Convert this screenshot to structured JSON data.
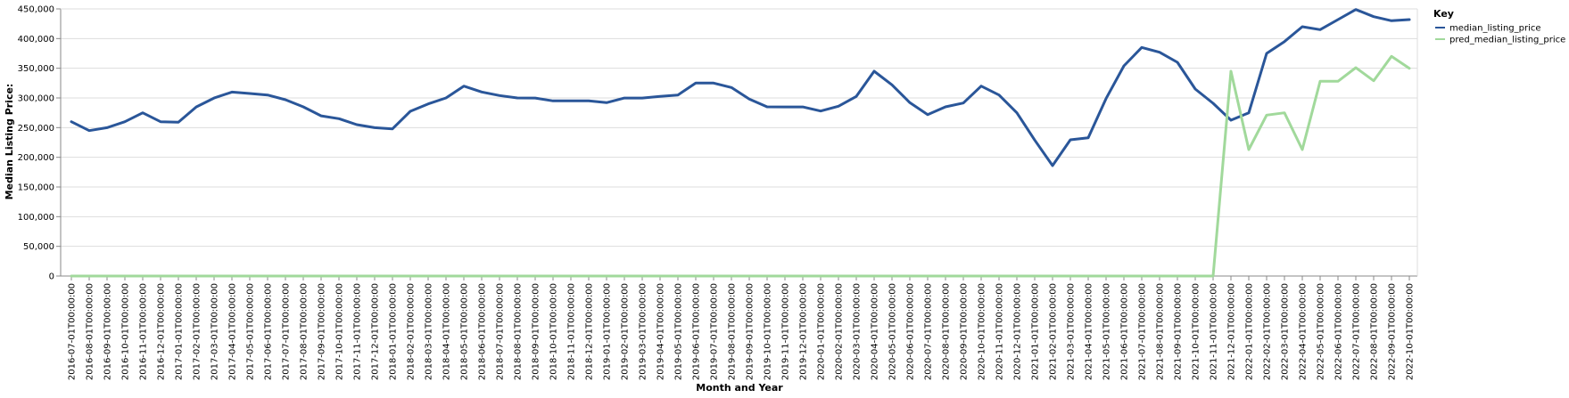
{
  "chart_data": {
    "type": "line",
    "xlabel": "Month and Year",
    "ylabel": "Median Listing Price:",
    "ylim": [
      0,
      450000
    ],
    "yticks": [
      0,
      50000,
      100000,
      150000,
      200000,
      250000,
      300000,
      350000,
      400000,
      450000
    ],
    "ytick_labels": [
      "0",
      "50,000",
      "100,000",
      "150,000",
      "200,000",
      "250,000",
      "300,000",
      "350,000",
      "400,000",
      "450,000"
    ],
    "grid": true,
    "legend": {
      "title": "Key",
      "placement": "top-right"
    },
    "categories": [
      "2016-07-01T00:00:00",
      "2016-08-01T00:00:00",
      "2016-09-01T00:00:00",
      "2016-10-01T00:00:00",
      "2016-11-01T00:00:00",
      "2016-12-01T00:00:00",
      "2017-01-01T00:00:00",
      "2017-02-01T00:00:00",
      "2017-03-01T00:00:00",
      "2017-04-01T00:00:00",
      "2017-05-01T00:00:00",
      "2017-06-01T00:00:00",
      "2017-07-01T00:00:00",
      "2017-08-01T00:00:00",
      "2017-09-01T00:00:00",
      "2017-10-01T00:00:00",
      "2017-11-01T00:00:00",
      "2017-12-01T00:00:00",
      "2018-01-01T00:00:00",
      "2018-02-01T00:00:00",
      "2018-03-01T00:00:00",
      "2018-04-01T00:00:00",
      "2018-05-01T00:00:00",
      "2018-06-01T00:00:00",
      "2018-07-01T00:00:00",
      "2018-08-01T00:00:00",
      "2018-09-01T00:00:00",
      "2018-10-01T00:00:00",
      "2018-11-01T00:00:00",
      "2018-12-01T00:00:00",
      "2019-01-01T00:00:00",
      "2019-02-01T00:00:00",
      "2019-03-01T00:00:00",
      "2019-04-01T00:00:00",
      "2019-05-01T00:00:00",
      "2019-06-01T00:00:00",
      "2019-07-01T00:00:00",
      "2019-08-01T00:00:00",
      "2019-09-01T00:00:00",
      "2019-10-01T00:00:00",
      "2019-11-01T00:00:00",
      "2019-12-01T00:00:00",
      "2020-01-01T00:00:00",
      "2020-02-01T00:00:00",
      "2020-03-01T00:00:00",
      "2020-04-01T00:00:00",
      "2020-05-01T00:00:00",
      "2020-06-01T00:00:00",
      "2020-07-01T00:00:00",
      "2020-08-01T00:00:00",
      "2020-09-01T00:00:00",
      "2020-10-01T00:00:00",
      "2020-11-01T00:00:00",
      "2020-12-01T00:00:00",
      "2021-01-01T00:00:00",
      "2021-02-01T00:00:00",
      "2021-03-01T00:00:00",
      "2021-04-01T00:00:00",
      "2021-05-01T00:00:00",
      "2021-06-01T00:00:00",
      "2021-07-01T00:00:00",
      "2021-08-01T00:00:00",
      "2021-09-01T00:00:00",
      "2021-10-01T00:00:00",
      "2021-11-01T00:00:00",
      "2021-12-01T00:00:00",
      "2022-01-01T00:00:00",
      "2022-02-01T00:00:00",
      "2022-03-01T00:00:00",
      "2022-04-01T00:00:00",
      "2022-05-01T00:00:00",
      "2022-06-01T00:00:00",
      "2022-07-01T00:00:00",
      "2022-08-01T00:00:00",
      "2022-09-01T00:00:00",
      "2022-10-01T00:00:00"
    ],
    "series": [
      {
        "name": "median_listing_price",
        "color": "#2a5699",
        "values": [
          259900,
          245000,
          249900,
          259900,
          275000,
          260000,
          259000,
          284900,
          299900,
          309900,
          307500,
          305000,
          297000,
          285000,
          269900,
          265000,
          255000,
          249900,
          247900,
          277500,
          289900,
          300000,
          320000,
          310000,
          304000,
          300000,
          299900,
          295000,
          295000,
          295000,
          292000,
          299900,
          299900,
          302500,
          305000,
          325000,
          325000,
          317500,
          298000,
          285000,
          284900,
          284900,
          278000,
          286000,
          302500,
          345000,
          322000,
          292000,
          272000,
          285000,
          291500,
          320000,
          305000,
          275000,
          229000,
          186000,
          229500,
          233000,
          299000,
          354000,
          385000,
          377000,
          360000,
          315000,
          291000,
          262500,
          275000,
          375000,
          395000,
          420000,
          415000,
          432000,
          449000,
          437000,
          430000,
          432000
        ]
      },
      {
        "name": "pred_median_listing_price",
        "color": "#a1d99b",
        "values": [
          0,
          0,
          0,
          0,
          0,
          0,
          0,
          0,
          0,
          0,
          0,
          0,
          0,
          0,
          0,
          0,
          0,
          0,
          0,
          0,
          0,
          0,
          0,
          0,
          0,
          0,
          0,
          0,
          0,
          0,
          0,
          0,
          0,
          0,
          0,
          0,
          0,
          0,
          0,
          0,
          0,
          0,
          0,
          0,
          0,
          0,
          0,
          0,
          0,
          0,
          0,
          0,
          0,
          0,
          0,
          0,
          0,
          0,
          0,
          0,
          0,
          0,
          0,
          0,
          0,
          345000,
          213000,
          271000,
          275000,
          213000,
          328000,
          328000,
          351000,
          329000,
          370000,
          350000
        ]
      }
    ]
  }
}
